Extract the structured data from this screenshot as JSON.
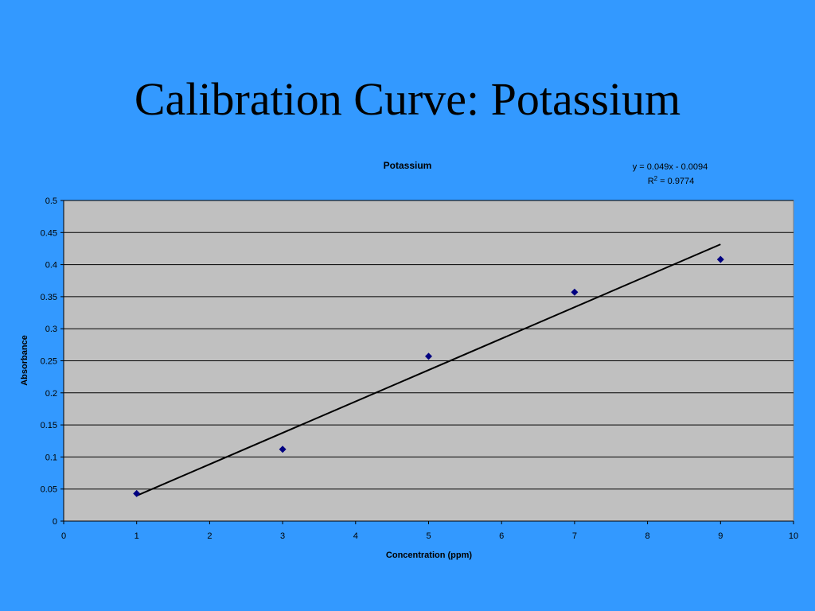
{
  "slide": {
    "title": "Calibration Curve:  Potassium"
  },
  "chart_data": {
    "type": "scatter",
    "title": "Potassium",
    "xlabel": "Concentration (ppm)",
    "ylabel": "Absorbance",
    "xlim": [
      0,
      10
    ],
    "ylim": [
      0,
      0.5
    ],
    "x_ticks": [
      "0",
      "1",
      "2",
      "3",
      "4",
      "5",
      "6",
      "7",
      "8",
      "9",
      "10"
    ],
    "y_ticks": [
      "0",
      "0.05",
      "0.1",
      "0.15",
      "0.2",
      "0.25",
      "0.3",
      "0.35",
      "0.4",
      "0.45",
      "0.5"
    ],
    "grid": "horizontal",
    "plot_background": "#c0c0c0",
    "marker_color": "#000080",
    "marker": "diamond",
    "series": [
      {
        "x": [
          1,
          3,
          5,
          7,
          9
        ],
        "y": [
          0.043,
          0.112,
          0.257,
          0.357,
          0.408
        ]
      }
    ],
    "trendline": {
      "type": "linear",
      "slope": 0.049,
      "intercept": -0.0094,
      "x_range": [
        1,
        9
      ],
      "equation_label": "y = 0.049x - 0.0094",
      "r2_prefix": "R",
      "r2_superscript": "2",
      "r2_value": " = 0.9774"
    }
  }
}
